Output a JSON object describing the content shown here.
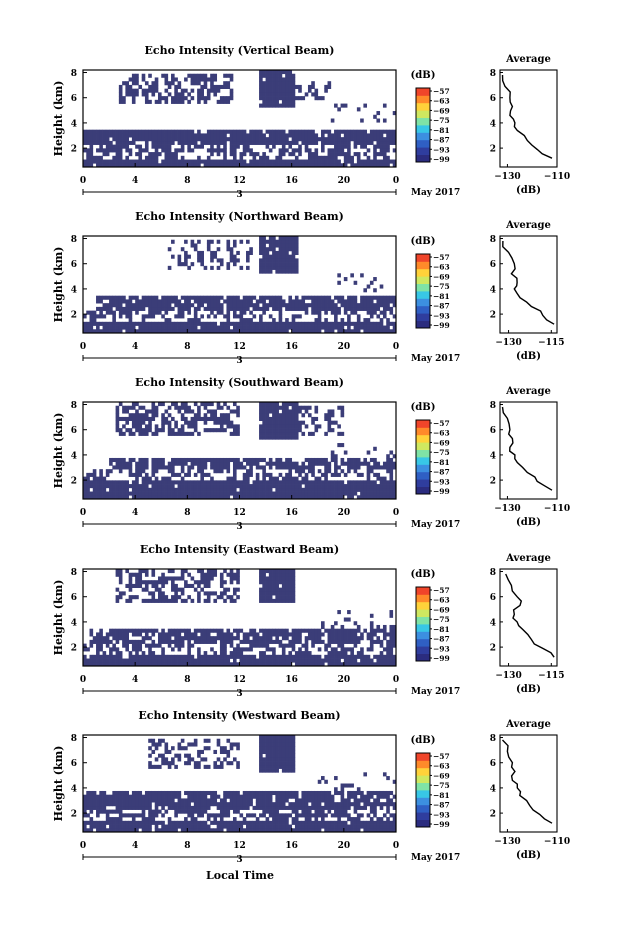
{
  "figure": {
    "xlabel": "Local Time",
    "date_label": "May 2017",
    "panel_ylabel": "Height (km)",
    "avg_title": "Average",
    "avg_xlabel": "(dB)",
    "cbar_unit": "(dB)",
    "cbar_ticks": [
      "−57",
      "−63",
      "−69",
      "−75",
      "−81",
      "−87",
      "−93",
      "−99"
    ],
    "cbar_colors": [
      "#2b2c7f",
      "#2f3d9e",
      "#2f5fc4",
      "#3c8fe0",
      "#38c7e6",
      "#7fe3a6",
      "#cfe860",
      "#ffd23a",
      "#ff8a2a",
      "#f0452a"
    ],
    "mask_color": "#3b3d78",
    "time_ticks": [
      "0",
      "4",
      "8",
      "12",
      "16",
      "20",
      "0"
    ],
    "day_label": "3",
    "height_ticks": [
      "2",
      "4",
      "6",
      "8"
    ],
    "avg_ticks_a": [
      "−130",
      "−110"
    ],
    "avg_ticks_b": [
      "−130",
      "−115"
    ]
  },
  "chart_data": [
    {
      "type": "heatmap",
      "title": "Echo Intensity (Vertical Beam)",
      "xlabel": "",
      "ylabel": "Height (km)",
      "xlim": [
        0,
        24
      ],
      "ylim": [
        0.5,
        8.2
      ],
      "colorbar": {
        "label": "(dB)",
        "ticks": [
          -57,
          -63,
          -69,
          -75,
          -81,
          -87,
          -93,
          -99
        ]
      },
      "echo_regions": [
        {
          "t": [
            0,
            24
          ],
          "h": [
            0.5,
            1.2
          ],
          "fill": 0.95
        },
        {
          "t": [
            0,
            24
          ],
          "h": [
            1.2,
            2.2
          ],
          "fill": 0.55
        },
        {
          "t": [
            0,
            24
          ],
          "h": [
            2.2,
            3.6
          ],
          "fill": 0.92
        },
        {
          "t": [
            2.8,
            11.5
          ],
          "h": [
            5.4,
            7.9
          ],
          "fill": 0.55
        },
        {
          "t": [
            13.5,
            16.2
          ],
          "h": [
            5.2,
            8.2
          ],
          "fill": 0.95
        },
        {
          "t": [
            16.2,
            19
          ],
          "h": [
            5.8,
            7.4
          ],
          "fill": 0.45
        },
        {
          "t": [
            19,
            24
          ],
          "h": [
            4.0,
            5.6
          ],
          "fill": 0.15
        }
      ],
      "average": {
        "x_ticks": [
          -130,
          -110
        ],
        "xlim": [
          -133,
          -110
        ],
        "x": [
          -132,
          -131,
          -129,
          -128,
          -129,
          -127,
          -126,
          -122,
          -118,
          -112
        ],
        "h": [
          7.8,
          6.9,
          6.0,
          5.3,
          4.6,
          4.0,
          3.4,
          2.6,
          1.9,
          1.2
        ]
      }
    },
    {
      "type": "heatmap",
      "title": "Echo Intensity (Northward Beam)",
      "xlabel": "",
      "ylabel": "Height (km)",
      "xlim": [
        0,
        24
      ],
      "ylim": [
        0.5,
        8.2
      ],
      "colorbar": {
        "label": "(dB)",
        "ticks": [
          -57,
          -63,
          -69,
          -75,
          -81,
          -87,
          -93,
          -99
        ]
      },
      "echo_regions": [
        {
          "t": [
            0,
            24
          ],
          "h": [
            0.5,
            1.4
          ],
          "fill": 0.95
        },
        {
          "t": [
            0,
            24
          ],
          "h": [
            1.4,
            2.3
          ],
          "fill": 0.45
        },
        {
          "t": [
            1,
            24
          ],
          "h": [
            2.3,
            3.5
          ],
          "fill": 0.9
        },
        {
          "t": [
            6.5,
            13
          ],
          "h": [
            5.6,
            8.0
          ],
          "fill": 0.4
        },
        {
          "t": [
            13.5,
            16.5
          ],
          "h": [
            5.3,
            8.2
          ],
          "fill": 0.95
        },
        {
          "t": [
            19,
            24
          ],
          "h": [
            3.8,
            5.2
          ],
          "fill": 0.12
        }
      ],
      "average": {
        "x_ticks": [
          -130,
          -115
        ],
        "xlim": [
          -133,
          -113
        ],
        "x": [
          -132,
          -130,
          -128,
          -129,
          -127,
          -128,
          -126,
          -122,
          -118,
          -114
        ],
        "h": [
          7.8,
          6.9,
          6.0,
          5.2,
          4.5,
          4.0,
          3.3,
          2.6,
          1.9,
          1.2
        ]
      }
    },
    {
      "type": "heatmap",
      "title": "Echo Intensity (Southward Beam)",
      "xlabel": "",
      "ylabel": "Height (km)",
      "xlim": [
        0,
        24
      ],
      "ylim": [
        0.5,
        8.2
      ],
      "colorbar": {
        "label": "(dB)",
        "ticks": [
          -57,
          -63,
          -69,
          -75,
          -81,
          -87,
          -93,
          -99
        ]
      },
      "echo_regions": [
        {
          "t": [
            0,
            24
          ],
          "h": [
            0.5,
            2.0
          ],
          "fill": 0.95
        },
        {
          "t": [
            0,
            24
          ],
          "h": [
            2.0,
            3.0
          ],
          "fill": 0.5
        },
        {
          "t": [
            2,
            24
          ],
          "h": [
            3.0,
            3.8
          ],
          "fill": 0.75
        },
        {
          "t": [
            2.5,
            12
          ],
          "h": [
            5.6,
            8.2
          ],
          "fill": 0.55
        },
        {
          "t": [
            13.5,
            16.5
          ],
          "h": [
            5.2,
            8.2
          ],
          "fill": 0.95
        },
        {
          "t": [
            16.5,
            20
          ],
          "h": [
            5.5,
            7.8
          ],
          "fill": 0.4
        },
        {
          "t": [
            19,
            24
          ],
          "h": [
            3.8,
            5.0
          ],
          "fill": 0.15
        }
      ],
      "average": {
        "x_ticks": [
          -130,
          -110
        ],
        "xlim": [
          -133,
          -110
        ],
        "x": [
          -132,
          -130,
          -129,
          -128,
          -129,
          -127,
          -126,
          -122,
          -118,
          -112
        ],
        "h": [
          7.8,
          6.9,
          6.0,
          5.3,
          4.6,
          4.0,
          3.4,
          2.6,
          1.9,
          1.2
        ]
      }
    },
    {
      "type": "heatmap",
      "title": "Echo Intensity (Eastward Beam)",
      "xlabel": "",
      "ylabel": "Height (km)",
      "xlim": [
        0,
        24
      ],
      "ylim": [
        0.5,
        8.2
      ],
      "colorbar": {
        "label": "(dB)",
        "ticks": [
          -57,
          -63,
          -69,
          -75,
          -81,
          -87,
          -93,
          -99
        ]
      },
      "echo_regions": [
        {
          "t": [
            0,
            24
          ],
          "h": [
            0.5,
            1.4
          ],
          "fill": 0.95
        },
        {
          "t": [
            0,
            24
          ],
          "h": [
            1.4,
            2.4
          ],
          "fill": 0.5
        },
        {
          "t": [
            0.5,
            24
          ],
          "h": [
            2.4,
            3.6
          ],
          "fill": 0.8
        },
        {
          "t": [
            2.5,
            12
          ],
          "h": [
            5.5,
            8.1
          ],
          "fill": 0.5
        },
        {
          "t": [
            13.5,
            16.3
          ],
          "h": [
            5.4,
            8.2
          ],
          "fill": 0.95
        },
        {
          "t": [
            18,
            24
          ],
          "h": [
            3.5,
            4.8
          ],
          "fill": 0.15
        }
      ],
      "average": {
        "x_ticks": [
          -130,
          -115
        ],
        "xlim": [
          -133,
          -113
        ],
        "x": [
          -131,
          -129,
          -127,
          -126,
          -128,
          -127,
          -125,
          -122,
          -118,
          -114
        ],
        "h": [
          7.8,
          6.9,
          6.0,
          5.3,
          4.6,
          4.0,
          3.4,
          2.6,
          1.9,
          1.2
        ]
      }
    },
    {
      "type": "heatmap",
      "title": "Echo Intensity (Westward Beam)",
      "xlabel": "Local Time",
      "ylabel": "Height (km)",
      "xlim": [
        0,
        24
      ],
      "ylim": [
        0.5,
        8.2
      ],
      "colorbar": {
        "label": "(dB)",
        "ticks": [
          -57,
          -63,
          -69,
          -75,
          -81,
          -87,
          -93,
          -99
        ]
      },
      "echo_regions": [
        {
          "t": [
            0,
            24
          ],
          "h": [
            0.5,
            1.4
          ],
          "fill": 0.95
        },
        {
          "t": [
            0,
            24
          ],
          "h": [
            1.4,
            2.4
          ],
          "fill": 0.5
        },
        {
          "t": [
            0,
            24
          ],
          "h": [
            2.4,
            3.8
          ],
          "fill": 0.85
        },
        {
          "t": [
            5,
            12
          ],
          "h": [
            5.6,
            8.0
          ],
          "fill": 0.45
        },
        {
          "t": [
            13.5,
            16.3
          ],
          "h": [
            5.3,
            8.2
          ],
          "fill": 0.95
        },
        {
          "t": [
            18,
            24
          ],
          "h": [
            3.8,
            5.3
          ],
          "fill": 0.15
        }
      ],
      "average": {
        "x_ticks": [
          -130,
          -110
        ],
        "xlim": [
          -133,
          -110
        ],
        "x": [
          -132,
          -130,
          -128,
          -127,
          -128,
          -126,
          -125,
          -121,
          -117,
          -112
        ],
        "h": [
          7.8,
          6.9,
          6.0,
          5.3,
          4.6,
          4.0,
          3.4,
          2.6,
          1.9,
          1.2
        ]
      }
    }
  ]
}
